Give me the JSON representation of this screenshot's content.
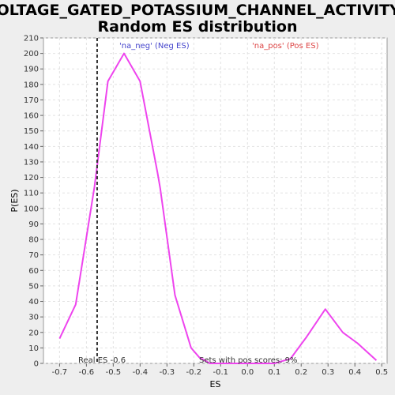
{
  "chart_data": {
    "type": "line",
    "title_line1": "VOLTAGE_GATED_POTASSIUM_CHANNEL_ACTIVITY:",
    "title_line2": "Random ES distribution",
    "xlabel": "ES",
    "ylabel": "P(ES)",
    "xlim": [
      -0.76,
      0.52
    ],
    "ylim": [
      0,
      210
    ],
    "x_ticks": [
      -0.7,
      -0.6,
      -0.5,
      -0.4,
      -0.3,
      -0.2,
      -0.1,
      0.0,
      0.1,
      0.2,
      0.3,
      0.4,
      0.5
    ],
    "x_tick_labels": [
      "-0.7",
      "-0.6",
      "-0.5",
      "-0.4",
      "-0.3",
      "-0.2",
      "-0.1",
      "0.0",
      "0.1",
      "0.2",
      "0.3",
      "0.4",
      "0.5"
    ],
    "y_ticks": [
      0,
      10,
      20,
      30,
      40,
      50,
      60,
      70,
      80,
      90,
      100,
      110,
      120,
      130,
      140,
      150,
      160,
      170,
      180,
      190,
      200,
      210
    ],
    "grid": true,
    "series": [
      {
        "name": "",
        "color": "#ee44ee",
        "x": [
          -0.7,
          -0.64,
          -0.57,
          -0.52,
          -0.46,
          -0.4,
          -0.335,
          -0.325,
          -0.27,
          -0.21,
          -0.18,
          -0.14,
          -0.08,
          0.0,
          0.1,
          0.16,
          0.22,
          0.29,
          0.355,
          0.41,
          0.48
        ],
        "y": [
          16,
          38,
          114,
          182,
          200,
          182,
          123,
          113,
          44,
          10,
          4,
          0,
          0,
          0,
          0,
          3,
          17,
          35,
          20,
          13,
          2
        ]
      }
    ],
    "legend": [
      {
        "label": "'na_neg' (Neg ES)",
        "color": "#4444cc"
      },
      {
        "label": "'na_pos' (Pos ES)",
        "color": "#dd4444"
      }
    ],
    "real_es": {
      "x": -0.56,
      "label": "Real ES -0.6"
    },
    "annotation": "Sets with pos scores: 9%"
  }
}
